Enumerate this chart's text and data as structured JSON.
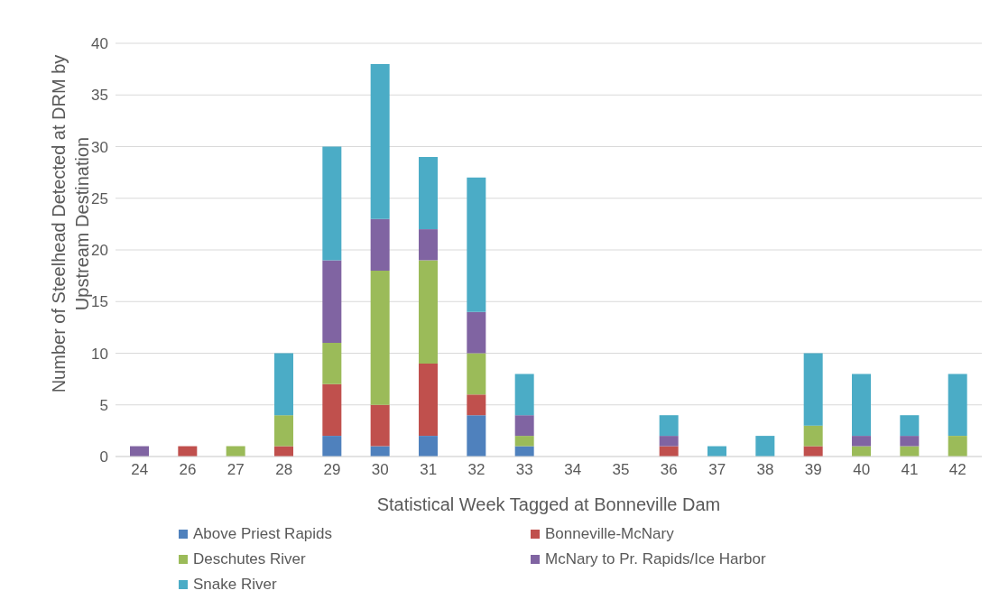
{
  "chart_data": {
    "type": "bar",
    "stacked": true,
    "xlabel": "Statistical Week Tagged at Bonneville Dam",
    "ylabel": "Number of Steelhead Detected at DRM by Upstream Destination",
    "categories": [
      "24",
      "26",
      "27",
      "28",
      "29",
      "30",
      "31",
      "32",
      "33",
      "34",
      "35",
      "36",
      "37",
      "38",
      "39",
      "40",
      "41",
      "42"
    ],
    "series": [
      {
        "name": "Above Priest Rapids",
        "color": "#4f81bd",
        "values": [
          0,
          0,
          0,
          0,
          2,
          1,
          2,
          4,
          1,
          0,
          0,
          0,
          0,
          0,
          0,
          0,
          0,
          0
        ]
      },
      {
        "name": "Bonneville-McNary",
        "color": "#c0504d",
        "values": [
          0,
          1,
          0,
          1,
          5,
          4,
          7,
          2,
          0,
          0,
          0,
          1,
          0,
          0,
          1,
          0,
          0,
          0
        ]
      },
      {
        "name": "Deschutes River",
        "color": "#9bbb59",
        "values": [
          0,
          0,
          1,
          3,
          4,
          13,
          10,
          4,
          1,
          0,
          0,
          0,
          0,
          0,
          2,
          1,
          1,
          2
        ]
      },
      {
        "name": "McNary to Pr. Rapids/Ice Harbor",
        "color": "#8064a2",
        "values": [
          1,
          0,
          0,
          0,
          8,
          5,
          3,
          4,
          2,
          0,
          0,
          1,
          0,
          0,
          0,
          1,
          1,
          0
        ]
      },
      {
        "name": "Snake River",
        "color": "#4bacc6",
        "values": [
          0,
          0,
          0,
          6,
          11,
          15,
          7,
          13,
          4,
          0,
          0,
          2,
          1,
          2,
          7,
          6,
          2,
          6
        ]
      }
    ],
    "ylim": [
      0,
      40
    ],
    "yticks": [
      0,
      5,
      10,
      15,
      20,
      25,
      30,
      35,
      40
    ],
    "grid": "y",
    "legend": "bottom"
  }
}
